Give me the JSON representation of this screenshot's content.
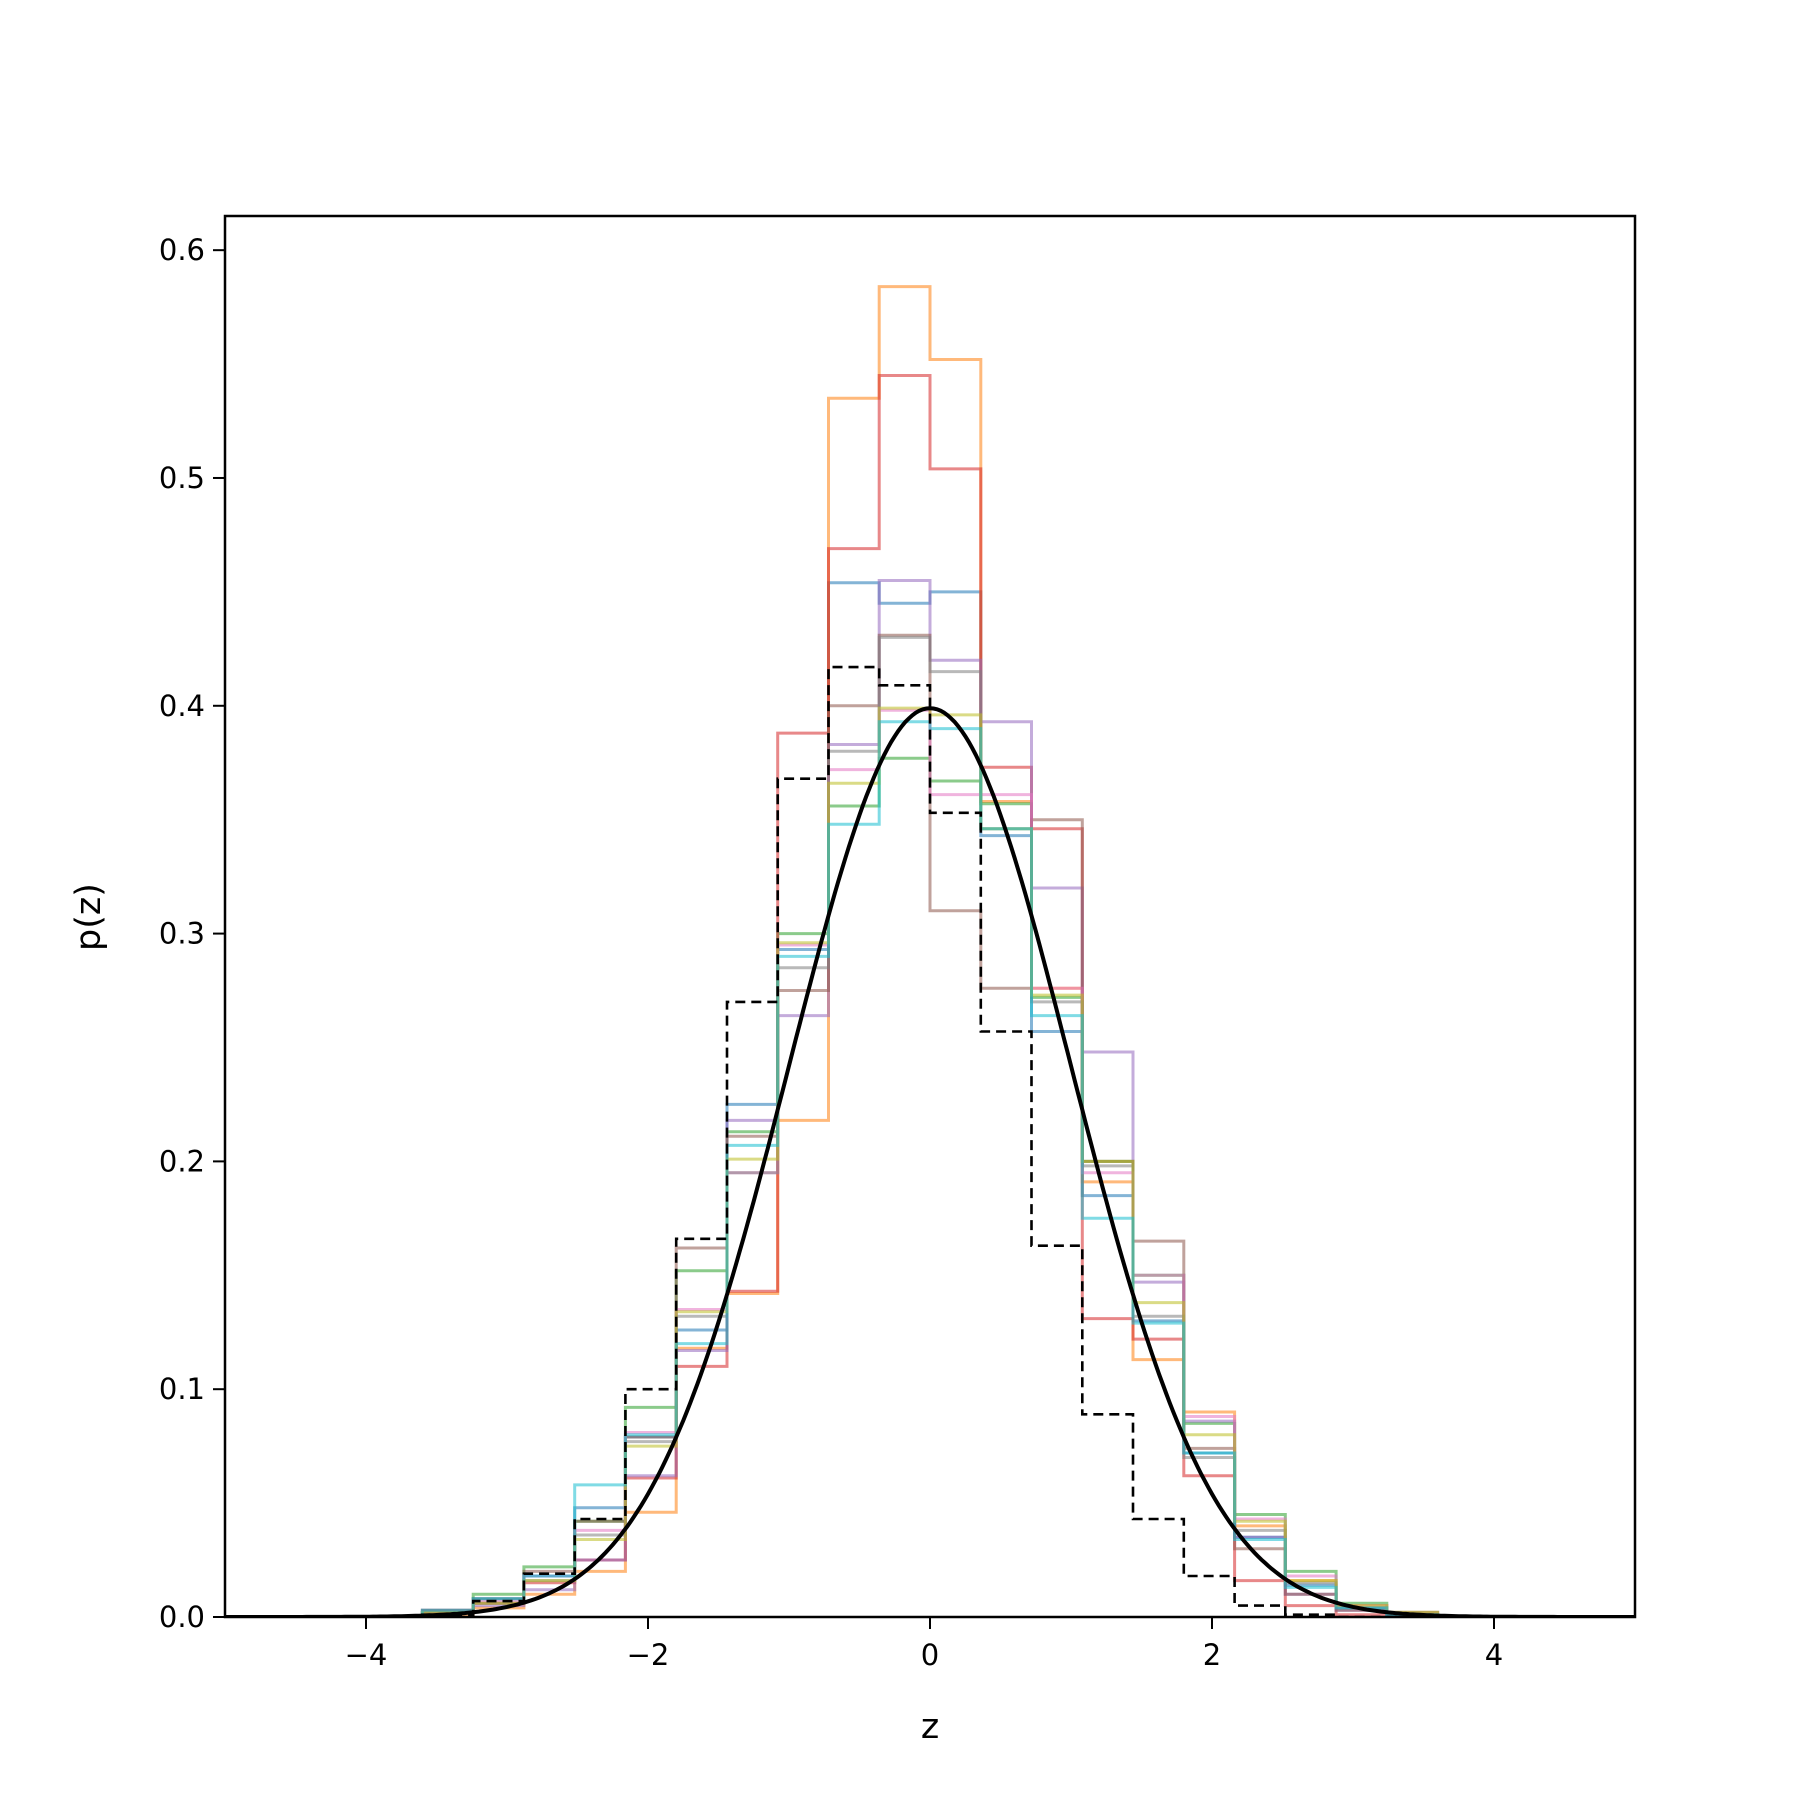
{
  "chart_data": {
    "type": "line",
    "xlabel": "z",
    "ylabel": "p(z)",
    "xlim": [
      -5,
      5
    ],
    "ylim": [
      0,
      0.615
    ],
    "x_ticks": [
      -4,
      -2,
      0,
      2,
      4
    ],
    "x_tick_labels": [
      "−4",
      "−2",
      "0",
      "2",
      "4"
    ],
    "y_ticks": [
      0.0,
      0.1,
      0.2,
      0.3,
      0.4,
      0.5,
      0.6
    ],
    "y_tick_labels": [
      "0.0",
      "0.1",
      "0.2",
      "0.3",
      "0.4",
      "0.5",
      "0.6"
    ],
    "grid": false,
    "legend": "none",
    "bin_edges": [
      -3.6,
      -3.24,
      -2.88,
      -2.52,
      -2.16,
      -1.8,
      -1.44,
      -1.08,
      -0.72,
      -0.36,
      0.0,
      0.36,
      0.72,
      1.08,
      1.44,
      1.8,
      2.16,
      2.52,
      2.88,
      3.24,
      3.6
    ],
    "histograms": [
      {
        "color": "#1f77b4",
        "values": [
          0.003,
          0.008,
          0.018,
          0.048,
          0.079,
          0.126,
          0.225,
          0.293,
          0.454,
          0.445,
          0.45,
          0.343,
          0.257,
          0.185,
          0.13,
          0.072,
          0.035,
          0.014,
          0.004,
          0.001
        ]
      },
      {
        "color": "#ff7f0e",
        "values": [
          0.001,
          0.004,
          0.01,
          0.02,
          0.046,
          0.118,
          0.142,
          0.218,
          0.535,
          0.584,
          0.552,
          0.358,
          0.276,
          0.191,
          0.113,
          0.09,
          0.04,
          0.016,
          0.005,
          0.002
        ]
      },
      {
        "color": "#2ca02c",
        "values": [
          0.002,
          0.01,
          0.022,
          0.042,
          0.092,
          0.152,
          0.213,
          0.3,
          0.356,
          0.377,
          0.367,
          0.357,
          0.272,
          0.2,
          0.15,
          0.085,
          0.045,
          0.02,
          0.006,
          0.002
        ]
      },
      {
        "color": "#d62728",
        "values": [
          0.003,
          0.006,
          0.015,
          0.025,
          0.061,
          0.11,
          0.143,
          0.388,
          0.469,
          0.545,
          0.504,
          0.373,
          0.346,
          0.131,
          0.122,
          0.062,
          0.016,
          0.005,
          0.001,
          0.001
        ]
      },
      {
        "color": "#9467bd",
        "values": [
          0.002,
          0.005,
          0.012,
          0.025,
          0.062,
          0.117,
          0.218,
          0.264,
          0.383,
          0.455,
          0.42,
          0.393,
          0.32,
          0.248,
          0.147,
          0.086,
          0.035,
          0.01,
          0.003,
          0.001
        ]
      },
      {
        "color": "#8c564b",
        "values": [
          0.002,
          0.008,
          0.02,
          0.042,
          0.079,
          0.162,
          0.211,
          0.275,
          0.4,
          0.431,
          0.31,
          0.276,
          0.35,
          0.2,
          0.165,
          0.074,
          0.03,
          0.01,
          0.003,
          0.001
        ]
      },
      {
        "color": "#e377c2",
        "values": [
          0.002,
          0.007,
          0.018,
          0.038,
          0.081,
          0.135,
          0.195,
          0.295,
          0.372,
          0.398,
          0.361,
          0.361,
          0.276,
          0.195,
          0.15,
          0.088,
          0.043,
          0.018,
          0.005,
          0.002
        ]
      },
      {
        "color": "#7f7f7f",
        "values": [
          0.002,
          0.006,
          0.016,
          0.036,
          0.077,
          0.132,
          0.195,
          0.285,
          0.38,
          0.43,
          0.415,
          0.346,
          0.27,
          0.198,
          0.132,
          0.07,
          0.038,
          0.015,
          0.004,
          0.001
        ]
      },
      {
        "color": "#bcbd22",
        "values": [
          0.002,
          0.006,
          0.016,
          0.034,
          0.075,
          0.134,
          0.201,
          0.296,
          0.366,
          0.399,
          0.396,
          0.346,
          0.273,
          0.2,
          0.138,
          0.08,
          0.042,
          0.016,
          0.005,
          0.002
        ]
      },
      {
        "color": "#17becf",
        "values": [
          0.003,
          0.008,
          0.018,
          0.058,
          0.08,
          0.12,
          0.207,
          0.29,
          0.348,
          0.393,
          0.39,
          0.346,
          0.264,
          0.175,
          0.129,
          0.072,
          0.034,
          0.013,
          0.004,
          0.001
        ]
      }
    ],
    "reference_histogram": {
      "style": "dashed",
      "color": "#000000",
      "values": [
        0.001,
        0.007,
        0.019,
        0.043,
        0.1,
        0.166,
        0.27,
        0.368,
        0.417,
        0.409,
        0.353,
        0.257,
        0.163,
        0.089,
        0.043,
        0.018,
        0.005,
        0.001,
        0.0,
        0.0
      ]
    },
    "curve": {
      "name": "standard normal density",
      "color": "#000000",
      "mean": 0,
      "std": 1
    }
  }
}
